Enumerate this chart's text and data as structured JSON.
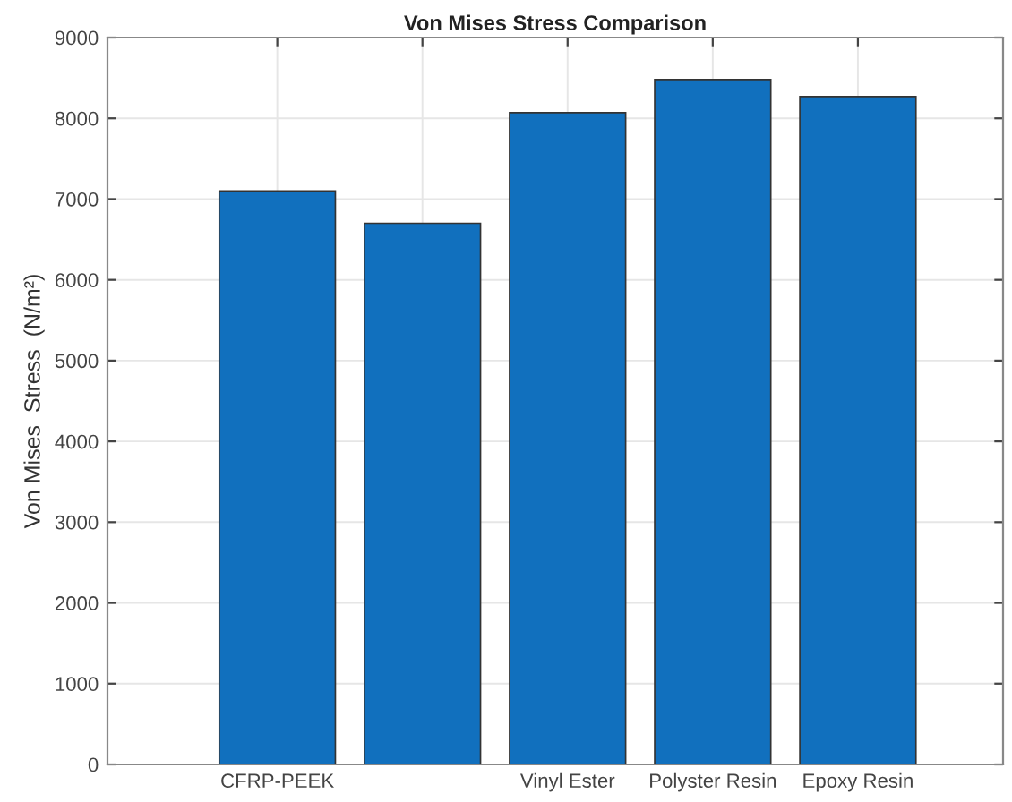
{
  "chart_data": {
    "type": "bar",
    "title": "Von Mises Stress Comparison",
    "ylabel": "Von Mises  Stress  (N/m²)",
    "categories": [
      "CFRP-PEEK",
      null,
      "Vinyl Ester",
      "Polyster Resin",
      "Epoxy Resin"
    ],
    "values": [
      7100,
      6700,
      8070,
      8480,
      8270
    ],
    "color": "#1170be",
    "ylim": [
      0,
      9000
    ],
    "yticks": [
      0,
      1000,
      2000,
      3000,
      4000,
      5000,
      6000,
      7000,
      8000,
      9000
    ],
    "grid": true
  }
}
